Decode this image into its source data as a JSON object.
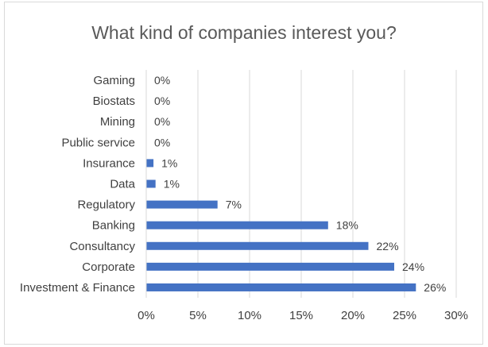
{
  "chart_data": {
    "type": "bar",
    "orientation": "horizontal",
    "title": "What kind of companies interest you?",
    "categories": [
      "Gaming",
      "Biostats",
      "Mining",
      "Public service",
      "Insurance",
      "Data",
      "Regulatory",
      "Banking",
      "Consultancy",
      "Corporate",
      "Investment & Finance"
    ],
    "values": [
      0,
      0,
      0,
      0,
      0.7,
      0.9,
      6.9,
      17.6,
      21.5,
      24.0,
      26.1
    ],
    "data_labels": [
      "0%",
      "0%",
      "0%",
      "0%",
      "1%",
      "1%",
      "7%",
      "18%",
      "22%",
      "24%",
      "26%"
    ],
    "xlim": [
      0,
      30
    ],
    "x_ticks": [
      "0%",
      "5%",
      "10%",
      "15%",
      "20%",
      "25%",
      "30%"
    ],
    "grid": "vertical",
    "legend": "none",
    "colors": {
      "bar": "#4472c4",
      "grid": "#d9d9d9",
      "text": "#404040",
      "title": "#595959"
    }
  }
}
